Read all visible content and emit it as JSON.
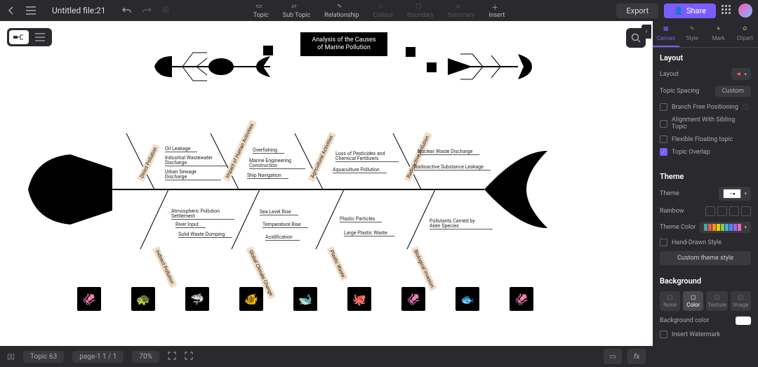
{
  "topbar": {
    "title": "Untitled file:21",
    "tools": [
      {
        "label": "Topic",
        "enabled": true
      },
      {
        "label": "Sub Topic",
        "enabled": true
      },
      {
        "label": "Relationship",
        "enabled": true
      },
      {
        "label": "Callout",
        "enabled": false
      },
      {
        "label": "Boundary",
        "enabled": false
      },
      {
        "label": "Summary",
        "enabled": false
      },
      {
        "label": "Insert",
        "enabled": true
      }
    ],
    "export": "Export",
    "share": "Share"
  },
  "diagram": {
    "title": "Analysis of the Causes of Marine Pollution",
    "title_bg": "#000000",
    "title_color": "#ffffff",
    "spine_color": "#000000",
    "bone_label_bg": "#f0dcc4",
    "bones_top": [
      {
        "label": "Direct Pollution",
        "leaves": [
          "Oil Leakage",
          "Industrial Wastewater Discharge",
          "Urban Sewage Discharge"
        ]
      },
      {
        "label": "Impact of Human Activities",
        "leaves": [
          "Overfishing",
          "Marine Engineering Construction",
          "Ship Navigation"
        ]
      },
      {
        "label": "Agricultural Activities",
        "leaves": [
          "Loss of Pesticides and Chemical Fertilizers",
          "Aquaculture Pollution"
        ]
      },
      {
        "label": "Radioactive Pollution",
        "leaves": [
          "Nuclear Waste Discharge",
          "Radioactive Substance Leakage"
        ]
      }
    ],
    "bones_bottom": [
      {
        "label": "Indirect Pollution",
        "leaves": [
          "Atmospheric Pollution Settlement",
          "River Input",
          "Solid Waste Dumping"
        ]
      },
      {
        "label": "Global Climate Change",
        "leaves": [
          "Sea Level Rise",
          "Temperature Rise",
          "Acidification"
        ]
      },
      {
        "label": "Plastic Waste",
        "leaves": [
          "Plastic Particles",
          "Large Plastic Waste"
        ]
      },
      {
        "label": "Biological Invasion",
        "leaves": [
          "Pollutants Carried by Alien Species"
        ]
      }
    ],
    "thumbnails": [
      "🦑",
      "🐢",
      "🦈",
      "🐠",
      "🐋",
      "🐙",
      "🦑",
      "🐟",
      "🦑"
    ]
  },
  "rpanel": {
    "tabs": [
      "Canvas",
      "Style",
      "Mark",
      "Clipart"
    ],
    "active_tab": 0,
    "layout_h": "Layout",
    "layout_lbl": "Layout",
    "spacing_lbl": "Topic Spacing",
    "spacing_val": "Custom",
    "branch_free": "Branch Free Positioning",
    "align_sibling": "Alignment With Sibling Topic",
    "flex_float": "Flexible Floating topic",
    "topic_overlap": "Topic Overlap",
    "theme_h": "Theme",
    "theme_lbl": "Theme",
    "rainbow_lbl": "Rainbow",
    "themecolor_lbl": "Theme Color",
    "themecolors": [
      "#4a9",
      "#e55",
      "#e90",
      "#ec0",
      "#8c4",
      "#4ae",
      "#58e",
      "#96e",
      "#e6a"
    ],
    "handdrawn": "Hand-Drawn Style",
    "custom_theme": "Custom theme style",
    "bg_h": "Background",
    "bg_tabs": [
      "None",
      "Color",
      "Texture",
      "Image"
    ],
    "bg_active": 1,
    "bgcolor_lbl": "Background color",
    "bgcolor_val": "#ffffff",
    "watermark": "Insert Watermark"
  },
  "btbar": {
    "topic": "Topic 63",
    "page": "page-1  1 / 1",
    "zoom": "70%"
  }
}
